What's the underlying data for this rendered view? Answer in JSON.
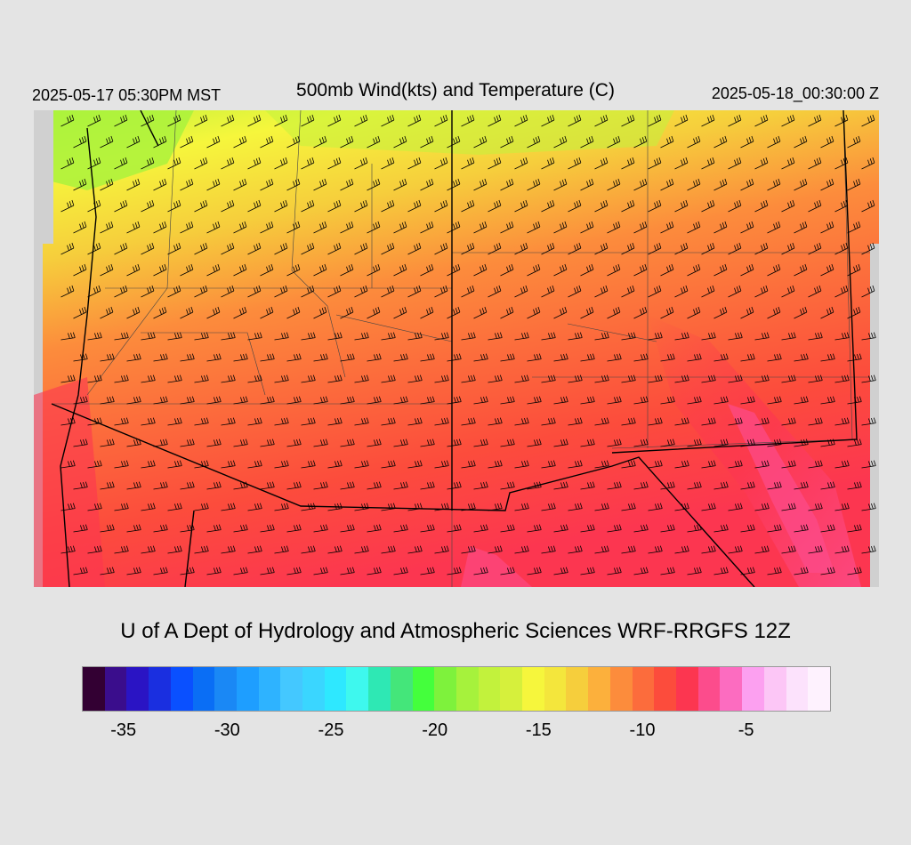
{
  "header": {
    "valid_time_local": "2025-05-17 05:30PM MST",
    "title": "500mb Wind(kts) and Temperature (C)",
    "valid_time_utc": "2025-05-18_00:30:00 Z"
  },
  "footer": {
    "credit": "U of A Dept of Hydrology and Atmospheric Sciences WRF-RRGFS 12Z"
  },
  "colorbar": {
    "colors": [
      "#330033",
      "#3a0d8c",
      "#2a14c4",
      "#1a2fe0",
      "#0a50ff",
      "#0a6ef5",
      "#1a88f5",
      "#1e9eff",
      "#2eb3ff",
      "#44c8ff",
      "#3ad6ff",
      "#2ee8ff",
      "#3ef8ee",
      "#2ee8b4",
      "#44e67a",
      "#44ff3c",
      "#7ef23c",
      "#a6f23c",
      "#c2f23c",
      "#d6f03c",
      "#f6f63c",
      "#f4e63c",
      "#f6ce3c",
      "#fcb03c",
      "#fc8c3c",
      "#fc6c3c",
      "#fc4c3c",
      "#fc3650",
      "#fc4c8c",
      "#fc6cc0",
      "#fca0f0",
      "#fcc6f6",
      "#fce2fc",
      "#fef2fe"
    ],
    "tick_labels": [
      {
        "label": "-35",
        "value": -35
      },
      {
        "label": "-30",
        "value": -30
      },
      {
        "label": "-25",
        "value": -25
      },
      {
        "label": "-20",
        "value": -20
      },
      {
        "label": "-15",
        "value": -15
      },
      {
        "label": "-10",
        "value": -10
      },
      {
        "label": "-5",
        "value": -5
      }
    ],
    "min": -37,
    "max": -1
  }
}
